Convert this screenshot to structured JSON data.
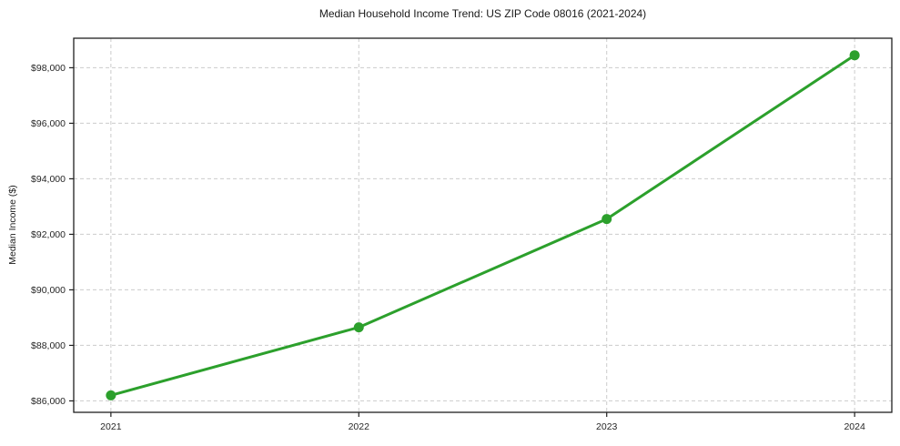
{
  "chart_data": {
    "type": "line",
    "title": "Median Household Income Trend: US ZIP Code 08016 (2021-2024)",
    "xlabel": "",
    "ylabel": "Median Income ($)",
    "x": [
      2021,
      2022,
      2023,
      2024
    ],
    "series": [
      {
        "name": "Median Household Income",
        "values": [
          86200,
          88650,
          92550,
          98450
        ],
        "color": "#2ca02c",
        "marker": "circle",
        "marker_size": 5.5,
        "line_width": 3
      }
    ],
    "xticks": [
      2021,
      2022,
      2023,
      2024
    ],
    "xtick_labels": [
      "2021",
      "2022",
      "2023",
      "2024"
    ],
    "yticks": [
      86000,
      88000,
      90000,
      92000,
      94000,
      96000,
      98000
    ],
    "ytick_labels": [
      "$86,000",
      "$88,000",
      "$90,000",
      "$92,000",
      "$94,000",
      "$96,000",
      "$98,000"
    ],
    "xlim": [
      2020.85,
      2024.15
    ],
    "ylim": [
      85588,
      99063
    ],
    "grid": true,
    "grid_color": "#cccccc",
    "grid_dash": "4 3",
    "frame_color": "#1f1f1f",
    "background": "#ffffff",
    "legend": "none"
  }
}
